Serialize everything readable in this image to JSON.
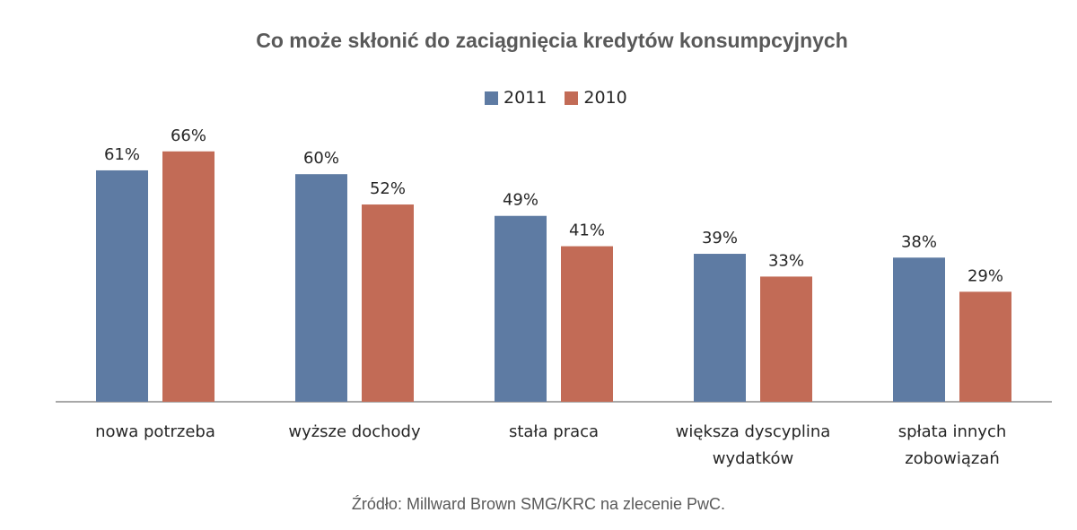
{
  "chart_data": {
    "type": "bar",
    "title": "Co może skłonić do zaciągnięcia kredytów konsumpcyjnych",
    "categories": [
      [
        "nowa potrzeba"
      ],
      [
        "wyższe dochody"
      ],
      [
        "stała praca"
      ],
      [
        "większa dyscyplina",
        "wydatków"
      ],
      [
        "spłata innych",
        "zobowiązań"
      ]
    ],
    "series": [
      {
        "name": "2011",
        "color": "#5e7ba3",
        "values": [
          61,
          60,
          49,
          39,
          38
        ]
      },
      {
        "name": "2010",
        "color": "#c26b56",
        "values": [
          66,
          52,
          41,
          33,
          29
        ]
      }
    ],
    "value_suffix": "%",
    "ylim": [
      0,
      100
    ],
    "legend_position": "top",
    "grid": false
  },
  "source": "Źródło: Millward Brown SMG/KRC na zlecenie PwC."
}
